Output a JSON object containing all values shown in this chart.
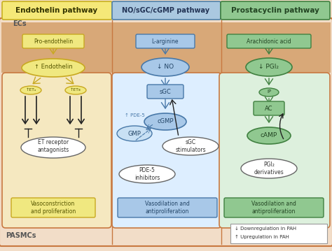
{
  "bg_color": "#f2ddc8",
  "title1": "Endothelin pathway",
  "title2": "NO/sGC/cGMP pathway",
  "title3": "Prostacyclin pathway",
  "title1_fc": "#f5e878",
  "title2_fc": "#aac8e0",
  "title3_fc": "#90c890",
  "title1_ec": "#c8b020",
  "title2_ec": "#5080a8",
  "title3_ec": "#408040",
  "cell_ec": "#c87840",
  "ec_band_fc": "#d8a878",
  "yellow_fill": "#f0e880",
  "yellow_ec": "#c8a820",
  "blue_fill": "#a8c8e8",
  "blue_ec": "#4878a8",
  "green_fill": "#90c890",
  "green_ec": "#408040",
  "white_fill": "#ffffff",
  "dark_arrow": "#222222",
  "label_ec": "ECs",
  "label_pasmc": "PASMCs",
  "legend_down": "↓ Downregulation in PAH",
  "legend_up": "↑ Upregulation in PAH",
  "left_cell_fc": "#f5e8c0",
  "mid_cell_fc": "#ddeeff",
  "right_cell_fc": "#ddf0dd"
}
